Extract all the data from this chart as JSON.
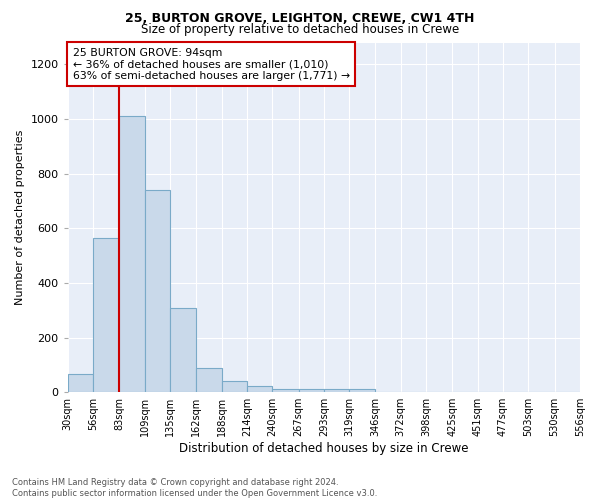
{
  "title1": "25, BURTON GROVE, LEIGHTON, CREWE, CW1 4TH",
  "title2": "Size of property relative to detached houses in Crewe",
  "xlabel": "Distribution of detached houses by size in Crewe",
  "ylabel": "Number of detached properties",
  "annotation_line1": "25 BURTON GROVE: 94sqm",
  "annotation_line2": "← 36% of detached houses are smaller (1,010)",
  "annotation_line3": "63% of semi-detached houses are larger (1,771) →",
  "vline_position": 83,
  "bins": [
    30,
    56,
    83,
    109,
    135,
    162,
    188,
    214,
    240,
    267,
    293,
    319,
    346,
    372,
    398,
    425,
    451,
    477,
    503,
    530,
    556
  ],
  "bar_heights": [
    65,
    565,
    1010,
    740,
    310,
    90,
    42,
    22,
    12,
    10,
    10,
    10,
    0,
    0,
    0,
    0,
    0,
    0,
    0,
    0
  ],
  "bar_color": "#c9d9ea",
  "bar_edge_color": "#7aaac8",
  "vline_color": "#cc0000",
  "background_color": "#e8eef8",
  "fig_background": "#ffffff",
  "annotation_box_color": "#ffffff",
  "annotation_box_edgecolor": "#cc0000",
  "ylim": [
    0,
    1280
  ],
  "yticks": [
    0,
    200,
    400,
    600,
    800,
    1000,
    1200
  ],
  "footer_text": "Contains HM Land Registry data © Crown copyright and database right 2024.\nContains public sector information licensed under the Open Government Licence v3.0.",
  "tick_labels": [
    "30sqm",
    "56sqm",
    "83sqm",
    "109sqm",
    "135sqm",
    "162sqm",
    "188sqm",
    "214sqm",
    "240sqm",
    "267sqm",
    "293sqm",
    "319sqm",
    "346sqm",
    "372sqm",
    "398sqm",
    "425sqm",
    "451sqm",
    "477sqm",
    "503sqm",
    "530sqm",
    "556sqm"
  ]
}
